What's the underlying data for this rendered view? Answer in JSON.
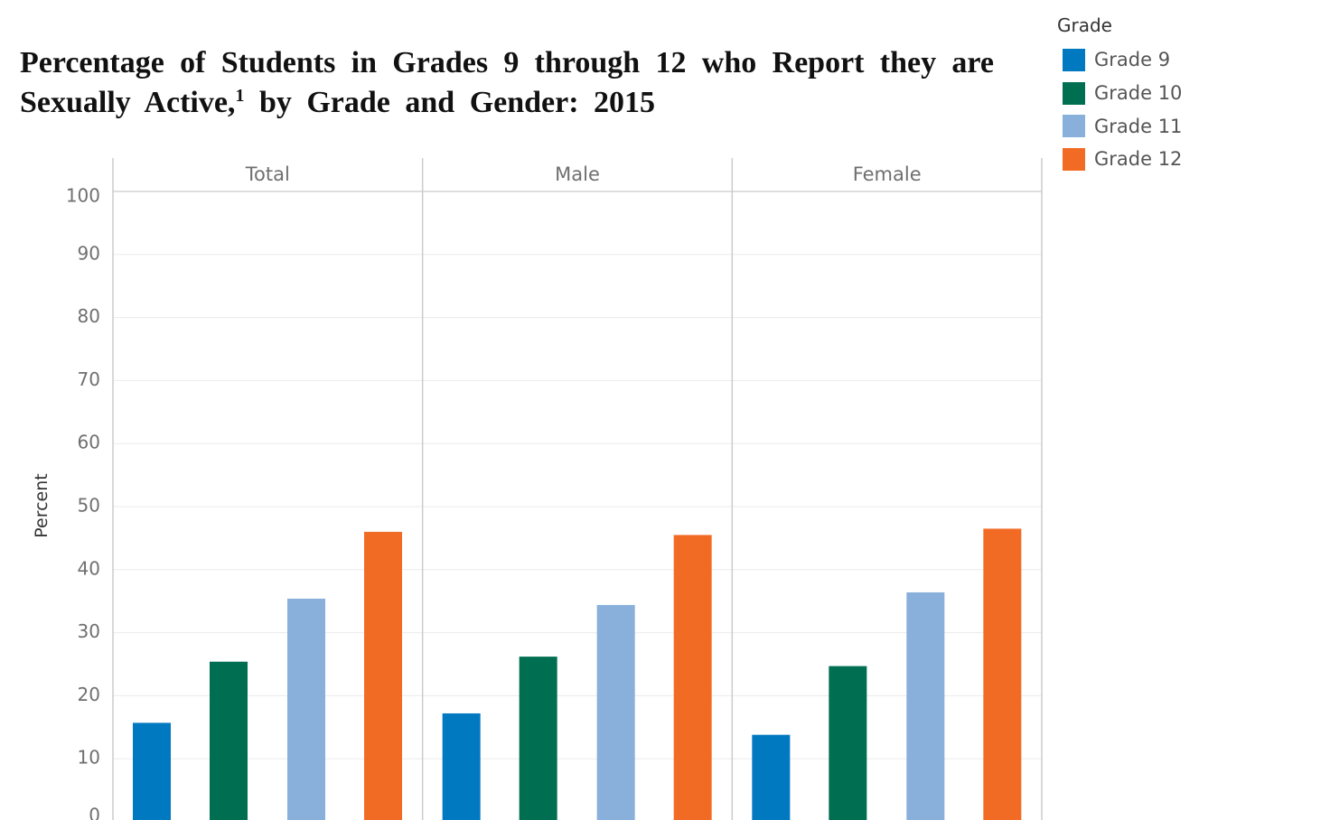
{
  "title": {
    "line1": "Percentage of Students in Grades 9 through 12 who Report they are",
    "line2_before": "Sexually Active,",
    "footnote_mark": "1",
    "line2_after": " by Grade and Gender: 2015"
  },
  "legend": {
    "title": "Grade",
    "items": [
      {
        "label": "Grade 9",
        "color": "#0079c1"
      },
      {
        "label": "Grade 10",
        "color": "#006f51"
      },
      {
        "label": "Grade 11",
        "color": "#88b0db"
      },
      {
        "label": "Grade 12",
        "color": "#f26b24"
      }
    ]
  },
  "chart_data": {
    "type": "bar",
    "panels": [
      "Total",
      "Male",
      "Female"
    ],
    "categories": [
      "Grade 9",
      "Grade 10",
      "Grade 11",
      "Grade 12"
    ],
    "series": [
      {
        "name": "Total",
        "values": [
          15.7,
          25.4,
          35.4,
          46.0
        ]
      },
      {
        "name": "Male",
        "values": [
          17.2,
          26.2,
          34.4,
          45.5
        ]
      },
      {
        "name": "Female",
        "values": [
          13.8,
          24.7,
          36.4,
          46.5
        ]
      }
    ],
    "colors": [
      "#0079c1",
      "#006f51",
      "#88b0db",
      "#f26b24"
    ],
    "ylabel": "Percent",
    "ylim": [
      0,
      100
    ],
    "yticks": [
      0,
      10,
      20,
      30,
      40,
      50,
      60,
      70,
      80,
      90,
      100
    ],
    "grid": true
  }
}
